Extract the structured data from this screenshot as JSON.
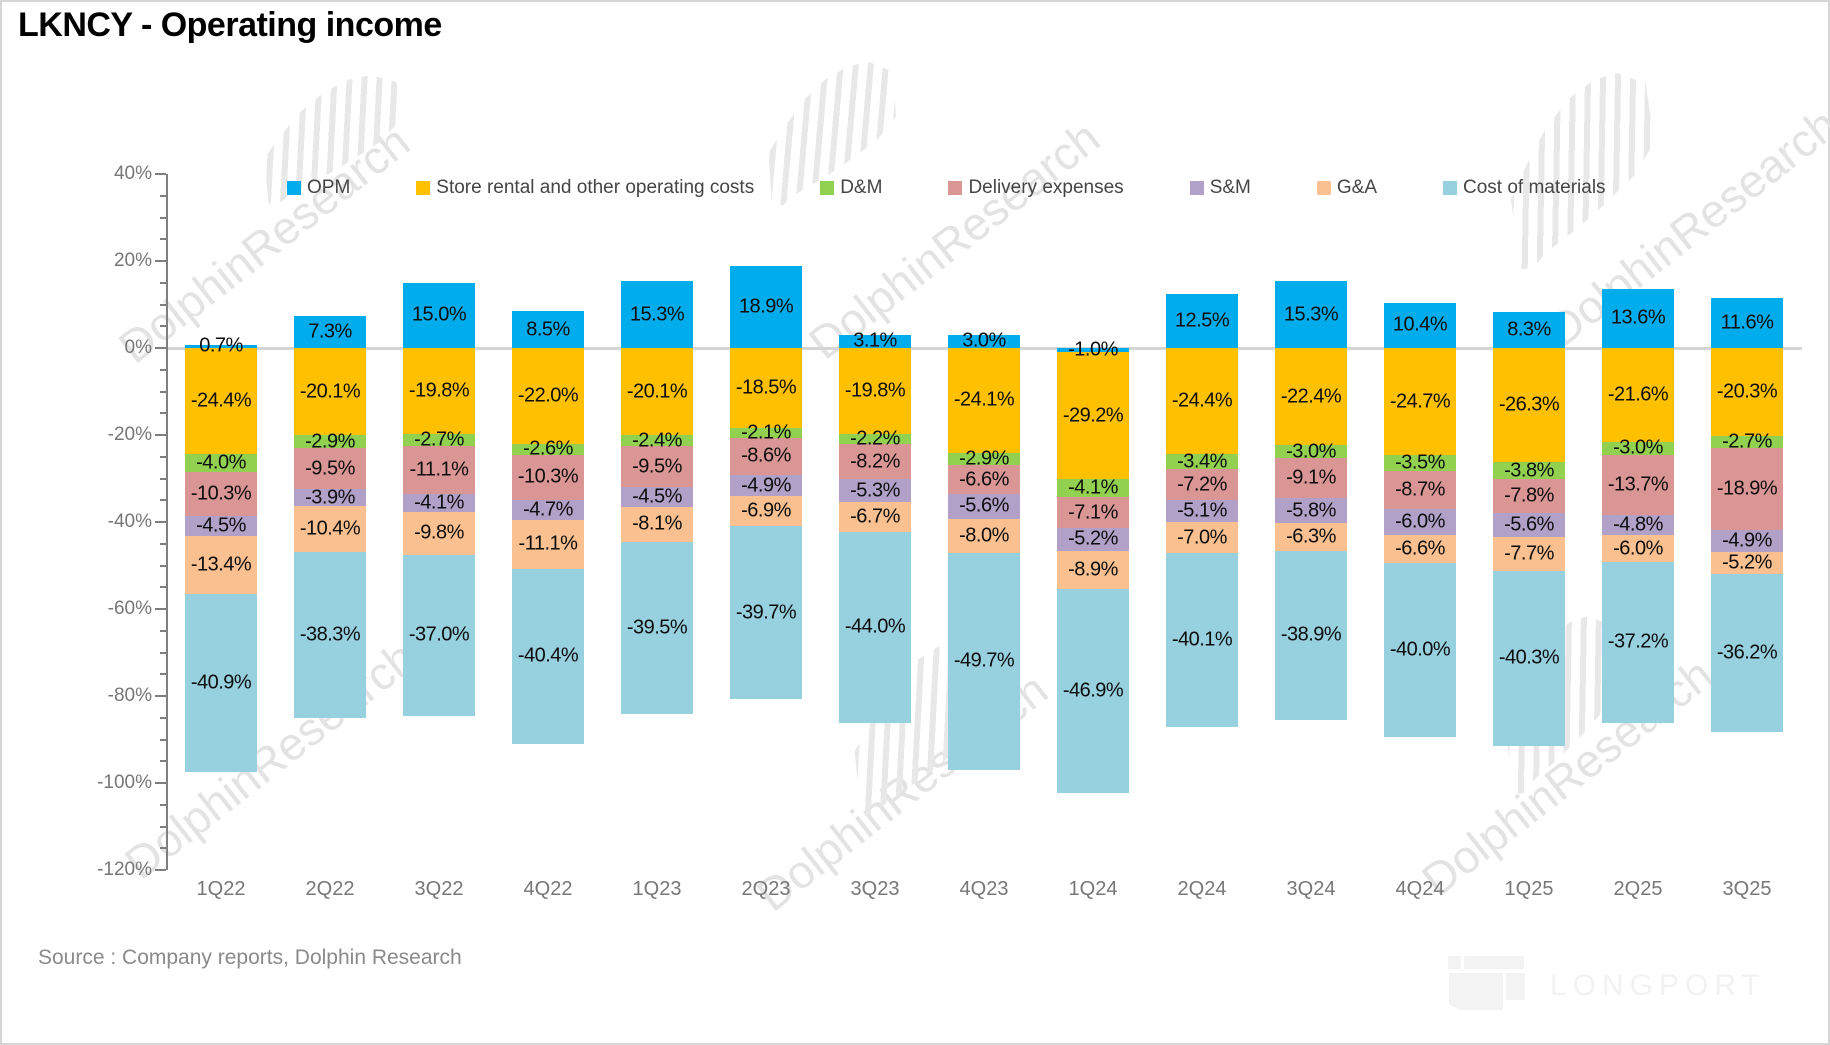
{
  "title": "LKNCY - Operating income",
  "source": "Source : Company reports, Dolphin Research",
  "watermark": {
    "text": "DolphinResearch",
    "logo_text": "LONGPORT"
  },
  "chart_data": {
    "type": "bar",
    "stacked": true,
    "title": "LKNCY - Operating income",
    "xlabel": "",
    "ylabel": "",
    "ylim": [
      -120,
      40
    ],
    "ytick_major_step": 20,
    "ytick_minor_step": 5,
    "grid": "zero-line-only",
    "legend_position": "top",
    "value_suffix": "%",
    "categories": [
      "1Q22",
      "2Q22",
      "3Q22",
      "4Q22",
      "1Q23",
      "2Q23",
      "3Q23",
      "4Q23",
      "1Q24",
      "2Q24",
      "3Q24",
      "4Q24",
      "1Q25",
      "2Q25",
      "3Q25"
    ],
    "series": [
      {
        "key": "opm",
        "name": "OPM",
        "color": "#00ACEC",
        "values": [
          0.7,
          7.3,
          15.0,
          8.5,
          15.3,
          18.9,
          3.1,
          3.0,
          -1.0,
          12.5,
          15.3,
          10.4,
          8.3,
          13.6,
          11.6
        ]
      },
      {
        "key": "store-rental",
        "name": "Store rental and other operating costs",
        "color": "#FFC000",
        "values": [
          -24.4,
          -20.1,
          -19.8,
          -22.0,
          -20.1,
          -18.5,
          -19.8,
          -24.1,
          -29.2,
          -24.4,
          -22.4,
          -24.7,
          -26.3,
          -21.6,
          -20.3
        ]
      },
      {
        "key": "d-and-m",
        "name": "D&M",
        "color": "#92D050",
        "values": [
          -4.0,
          -2.9,
          -2.7,
          -2.6,
          -2.4,
          -2.1,
          -2.2,
          -2.9,
          -4.1,
          -3.4,
          -3.0,
          -3.5,
          -3.8,
          -3.0,
          -2.7
        ]
      },
      {
        "key": "delivery-expenses",
        "name": "Delivery expenses",
        "color": "#D99694",
        "values": [
          -10.3,
          -9.5,
          -11.1,
          -10.3,
          -9.5,
          -8.6,
          -8.2,
          -6.6,
          -7.1,
          -7.2,
          -9.1,
          -8.7,
          -7.8,
          -13.7,
          -18.9
        ]
      },
      {
        "key": "s-and-m",
        "name": "S&M",
        "color": "#B1A0C7",
        "values": [
          -4.5,
          -3.9,
          -4.1,
          -4.7,
          -4.5,
          -4.9,
          -5.3,
          -5.6,
          -5.2,
          -5.1,
          -5.8,
          -6.0,
          -5.6,
          -4.8,
          -4.9
        ]
      },
      {
        "key": "g-and-a",
        "name": "G&A",
        "color": "#FAC090",
        "values": [
          -13.4,
          -10.4,
          -9.8,
          -11.1,
          -8.1,
          -6.9,
          -6.7,
          -8.0,
          -8.9,
          -7.0,
          -6.3,
          -6.6,
          -7.7,
          -6.0,
          -5.2
        ]
      },
      {
        "key": "cost-of-materials",
        "name": "Cost of materials",
        "color": "#97D0DF",
        "values": [
          -40.9,
          -38.3,
          -37.0,
          -40.4,
          -39.5,
          -39.7,
          -44.0,
          -49.7,
          -46.9,
          -40.1,
          -38.9,
          -40.0,
          -40.3,
          -37.2,
          -36.2
        ]
      }
    ]
  }
}
